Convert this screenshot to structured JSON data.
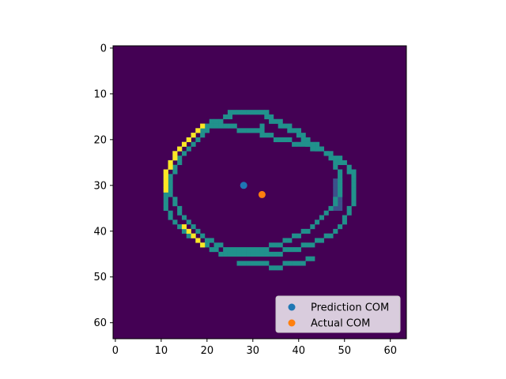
{
  "chart_data": {
    "type": "heatmap",
    "title": "",
    "xlabel": "",
    "ylabel": "",
    "image": {
      "shape": [
        64,
        64
      ],
      "colormap": "viridis",
      "background_value": 0.0,
      "colors": {
        "background": "#440154",
        "mid": "#21918c",
        "high": "#fde725",
        "low_mid": "#3b528b"
      },
      "note_values": "pixel intensities 0..1 on viridis scale; listed pixels are non-background",
      "outer_ring": [
        [
          14,
          25
        ],
        [
          14,
          26
        ],
        [
          14,
          27
        ],
        [
          14,
          28
        ],
        [
          14,
          29
        ],
        [
          14,
          30
        ],
        [
          14,
          31
        ],
        [
          14,
          32
        ],
        [
          14,
          33
        ],
        [
          15,
          24
        ],
        [
          15,
          25
        ],
        [
          15,
          33
        ],
        [
          15,
          34
        ],
        [
          16,
          21
        ],
        [
          16,
          22
        ],
        [
          16,
          23
        ],
        [
          16,
          34
        ],
        [
          16,
          35
        ],
        [
          16,
          36
        ],
        [
          17,
          20
        ],
        [
          17,
          36
        ],
        [
          17,
          37
        ],
        [
          17,
          38
        ],
        [
          18,
          18
        ],
        [
          18,
          19
        ],
        [
          18,
          38
        ],
        [
          18,
          39
        ],
        [
          18,
          40
        ],
        [
          19,
          17
        ],
        [
          19,
          40
        ],
        [
          19,
          41
        ],
        [
          20,
          16
        ],
        [
          20,
          41
        ],
        [
          20,
          42
        ],
        [
          21,
          15
        ],
        [
          21,
          42
        ],
        [
          21,
          43
        ],
        [
          21,
          44
        ],
        [
          22,
          14
        ],
        [
          22,
          44
        ],
        [
          22,
          45
        ],
        [
          23,
          13
        ],
        [
          23,
          46
        ],
        [
          23,
          47
        ],
        [
          24,
          13
        ],
        [
          24,
          48
        ],
        [
          24,
          49
        ],
        [
          25,
          12
        ],
        [
          25,
          49
        ],
        [
          25,
          50
        ],
        [
          26,
          12
        ],
        [
          26,
          51
        ],
        [
          27,
          11
        ],
        [
          27,
          51
        ],
        [
          27,
          52
        ],
        [
          28,
          11
        ],
        [
          28,
          52
        ],
        [
          29,
          11
        ],
        [
          29,
          52
        ],
        [
          30,
          11
        ],
        [
          30,
          52
        ],
        [
          31,
          11
        ],
        [
          31,
          52
        ],
        [
          32,
          11
        ],
        [
          32,
          52
        ],
        [
          33,
          11
        ],
        [
          33,
          52
        ],
        [
          34,
          11
        ],
        [
          34,
          52
        ],
        [
          35,
          11
        ],
        [
          35,
          51
        ],
        [
          36,
          12
        ],
        [
          36,
          51
        ],
        [
          37,
          12
        ],
        [
          37,
          50
        ],
        [
          38,
          13
        ],
        [
          38,
          50
        ],
        [
          39,
          14
        ],
        [
          39,
          49
        ],
        [
          40,
          15
        ],
        [
          40,
          48
        ],
        [
          41,
          16
        ],
        [
          41,
          17
        ],
        [
          41,
          46
        ],
        [
          41,
          47
        ],
        [
          42,
          18
        ],
        [
          42,
          44
        ],
        [
          42,
          45
        ],
        [
          43,
          19
        ],
        [
          43,
          20
        ],
        [
          43,
          41
        ],
        [
          43,
          42
        ],
        [
          43,
          43
        ],
        [
          44,
          21
        ],
        [
          44,
          22
        ],
        [
          44,
          37
        ],
        [
          44,
          38
        ],
        [
          44,
          39
        ],
        [
          44,
          40
        ],
        [
          45,
          23
        ],
        [
          45,
          24
        ],
        [
          45,
          25
        ],
        [
          45,
          26
        ],
        [
          45,
          27
        ],
        [
          45,
          28
        ],
        [
          45,
          29
        ],
        [
          45,
          30
        ],
        [
          45,
          31
        ],
        [
          45,
          32
        ],
        [
          45,
          33
        ],
        [
          45,
          34
        ],
        [
          45,
          35
        ],
        [
          45,
          36
        ],
        [
          46,
          42
        ],
        [
          46,
          43
        ],
        [
          47,
          27
        ],
        [
          47,
          28
        ],
        [
          47,
          29
        ],
        [
          47,
          30
        ],
        [
          47,
          31
        ],
        [
          47,
          32
        ],
        [
          47,
          33
        ],
        [
          47,
          37
        ],
        [
          47,
          38
        ],
        [
          47,
          39
        ],
        [
          47,
          40
        ],
        [
          47,
          41
        ],
        [
          48,
          34
        ],
        [
          48,
          35
        ],
        [
          48,
          36
        ]
      ],
      "inner_ring": [
        [
          17,
          21
        ],
        [
          17,
          22
        ],
        [
          17,
          23
        ],
        [
          17,
          24
        ],
        [
          17,
          25
        ],
        [
          17,
          26
        ],
        [
          18,
          27
        ],
        [
          18,
          28
        ],
        [
          18,
          29
        ],
        [
          18,
          30
        ],
        [
          18,
          31
        ],
        [
          17,
          32
        ],
        [
          18,
          32
        ],
        [
          19,
          32
        ],
        [
          19,
          33
        ],
        [
          19,
          34
        ],
        [
          20,
          35
        ],
        [
          20,
          36
        ],
        [
          20,
          37
        ],
        [
          20,
          38
        ],
        [
          21,
          39
        ],
        [
          21,
          40
        ],
        [
          21,
          41
        ],
        [
          21,
          42
        ],
        [
          22,
          43
        ],
        [
          22,
          44
        ],
        [
          22,
          45
        ],
        [
          23,
          46
        ],
        [
          24,
          47
        ],
        [
          25,
          48
        ],
        [
          26,
          48
        ],
        [
          27,
          49
        ],
        [
          28,
          49
        ],
        [
          29,
          49
        ],
        [
          30,
          49
        ],
        [
          31,
          49
        ],
        [
          32,
          49
        ],
        [
          33,
          48
        ],
        [
          34,
          48
        ],
        [
          35,
          47
        ],
        [
          36,
          46
        ],
        [
          37,
          45
        ],
        [
          38,
          44
        ],
        [
          39,
          43
        ],
        [
          40,
          42
        ],
        [
          40,
          41
        ],
        [
          41,
          40
        ],
        [
          41,
          39
        ],
        [
          42,
          38
        ],
        [
          42,
          37
        ],
        [
          43,
          36
        ],
        [
          43,
          35
        ],
        [
          43,
          34
        ],
        [
          44,
          33
        ],
        [
          44,
          32
        ],
        [
          44,
          31
        ],
        [
          44,
          30
        ],
        [
          44,
          29
        ],
        [
          44,
          28
        ],
        [
          44,
          27
        ],
        [
          44,
          26
        ],
        [
          44,
          25
        ],
        [
          44,
          24
        ],
        [
          43,
          23
        ],
        [
          43,
          22
        ],
        [
          42,
          21
        ],
        [
          42,
          20
        ],
        [
          41,
          19
        ],
        [
          40,
          18
        ],
        [
          39,
          17
        ],
        [
          38,
          16
        ],
        [
          37,
          15
        ],
        [
          36,
          14
        ],
        [
          35,
          14
        ],
        [
          34,
          13
        ],
        [
          33,
          13
        ],
        [
          32,
          12
        ],
        [
          31,
          12
        ],
        [
          30,
          12
        ],
        [
          29,
          12
        ],
        [
          28,
          12
        ],
        [
          27,
          13
        ],
        [
          26,
          13
        ],
        [
          25,
          14
        ],
        [
          24,
          14
        ],
        [
          23,
          15
        ],
        [
          22,
          16
        ],
        [
          21,
          17
        ],
        [
          20,
          18
        ],
        [
          19,
          19
        ],
        [
          18,
          20
        ]
      ],
      "bright_ring": [
        [
          17,
          19
        ],
        [
          18,
          18
        ],
        [
          19,
          17
        ],
        [
          20,
          16
        ],
        [
          21,
          15
        ],
        [
          22,
          14
        ],
        [
          23,
          13
        ],
        [
          24,
          13
        ],
        [
          25,
          12
        ],
        [
          26,
          12
        ],
        [
          27,
          11
        ],
        [
          28,
          11
        ],
        [
          29,
          11
        ],
        [
          30,
          11
        ],
        [
          31,
          11
        ],
        [
          39,
          15
        ],
        [
          40,
          16
        ],
        [
          41,
          17
        ],
        [
          42,
          18
        ],
        [
          43,
          19
        ]
      ],
      "faint_band": [
        [
          29,
          48
        ],
        [
          30,
          48
        ],
        [
          31,
          48
        ],
        [
          32,
          48
        ],
        [
          33,
          48
        ],
        [
          34,
          48
        ],
        [
          35,
          48
        ],
        [
          29,
          49
        ],
        [
          30,
          49
        ],
        [
          31,
          49
        ],
        [
          32,
          49
        ],
        [
          33,
          49
        ],
        [
          34,
          49
        ],
        [
          35,
          49
        ]
      ]
    },
    "xlim": [
      -0.5,
      63.5
    ],
    "ylim": [
      63.5,
      -0.5
    ],
    "x_ticks": [
      0,
      10,
      20,
      30,
      40,
      50,
      60
    ],
    "y_ticks": [
      0,
      10,
      20,
      30,
      40,
      50,
      60
    ],
    "grid": false,
    "legend_position": "lower-right",
    "series": [
      {
        "name": "Prediction COM",
        "type": "scatter",
        "x": [
          28
        ],
        "y": [
          30
        ],
        "color": "#1f77b4"
      },
      {
        "name": "Actual COM",
        "type": "scatter",
        "x": [
          32
        ],
        "y": [
          32
        ],
        "color": "#ff7f0e"
      }
    ]
  }
}
